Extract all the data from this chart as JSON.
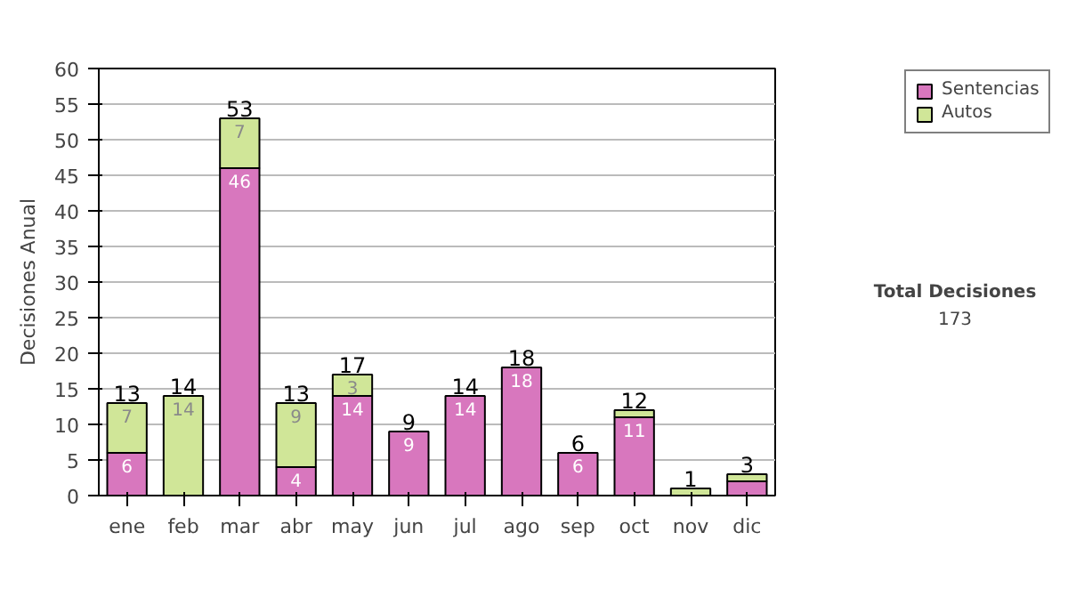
{
  "chart_data": {
    "type": "bar",
    "stacked": true,
    "ylabel": "Decisiones Anual",
    "categories": [
      "ene",
      "feb",
      "mar",
      "abr",
      "may",
      "jun",
      "jul",
      "ago",
      "sep",
      "oct",
      "nov",
      "dic"
    ],
    "series": [
      {
        "name": "Sentencias",
        "color": "#d877be",
        "values": [
          6,
          0,
          46,
          4,
          14,
          9,
          14,
          18,
          6,
          11,
          0,
          2
        ],
        "value_labels": [
          "6",
          null,
          "46",
          "4",
          "14",
          "9",
          "14",
          "18",
          "6",
          "11",
          null,
          null
        ]
      },
      {
        "name": "Autos",
        "color": "#d0e698",
        "values": [
          7,
          14,
          7,
          9,
          3,
          0,
          0,
          0,
          0,
          1,
          1,
          1
        ],
        "value_labels": [
          "7",
          "14",
          "7",
          "9",
          "3",
          null,
          null,
          null,
          null,
          null,
          null,
          null
        ]
      }
    ],
    "totals": [
      "13",
      "14",
      "53",
      "13",
      "17",
      "9",
      "14",
      "18",
      "6",
      "12",
      "1",
      "3"
    ],
    "ylim": [
      0,
      60
    ],
    "yticks": [
      0,
      5,
      10,
      15,
      20,
      25,
      30,
      35,
      40,
      45,
      50,
      55,
      60
    ],
    "grid": "y",
    "legend": "right",
    "annotations": [
      "Total Decisiones",
      "173"
    ]
  }
}
